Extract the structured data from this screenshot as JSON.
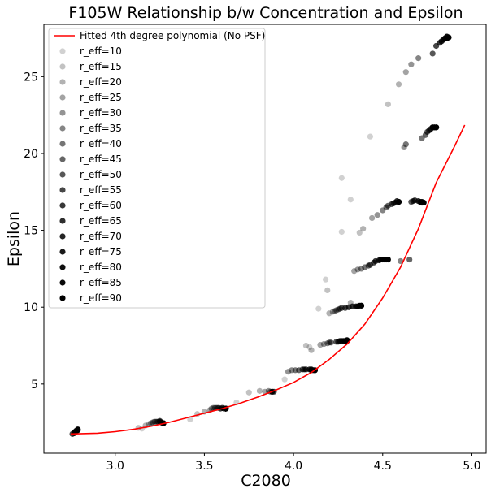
{
  "chart_data": {
    "type": "scatter",
    "title": "F105W Relationship b/w Concentration and Epsilon",
    "xlabel": "C2080",
    "ylabel": "Epsilon",
    "xlim": [
      2.6,
      5.08
    ],
    "ylim": [
      0.5,
      28.4
    ],
    "xticks": [
      3.0,
      3.5,
      4.0,
      4.5,
      5.0
    ],
    "xtick_labels": [
      "3.0",
      "3.5",
      "4.0",
      "4.5",
      "5.0"
    ],
    "yticks": [
      5,
      10,
      15,
      20,
      25
    ],
    "ytick_labels": [
      "5",
      "10",
      "15",
      "20",
      "25"
    ],
    "grid": false,
    "legend_position": "upper-left",
    "fit_line": {
      "name": "Fitted 4th degree polynomial (No PSF)",
      "color": "#ff0000",
      "x": [
        2.75,
        2.9,
        3.0,
        3.1,
        3.2,
        3.3,
        3.4,
        3.5,
        3.6,
        3.7,
        3.8,
        3.9,
        4.0,
        4.1,
        4.2,
        4.3,
        4.4,
        4.5,
        4.6,
        4.7,
        4.8,
        4.9,
        4.96
      ],
      "y": [
        1.75,
        1.8,
        1.9,
        2.05,
        2.25,
        2.5,
        2.8,
        3.1,
        3.4,
        3.75,
        4.15,
        4.6,
        5.1,
        5.75,
        6.6,
        7.6,
        8.9,
        10.6,
        12.6,
        15.1,
        18.1,
        20.4,
        21.85
      ]
    },
    "series": [
      {
        "name": "r_eff=10",
        "alpha": 0.18,
        "x": [
          3.15,
          3.42,
          3.68,
          3.95,
          4.09,
          4.14,
          4.18,
          4.27,
          4.27,
          4.32,
          4.43
        ],
        "y": [
          2.1,
          2.7,
          3.8,
          5.3,
          7.4,
          9.9,
          11.8,
          14.9,
          18.4,
          17.0,
          21.1
        ]
      },
      {
        "name": "r_eff=15",
        "alpha": 0.24,
        "x": [
          3.13,
          3.46,
          3.75,
          4.07,
          4.19,
          4.37,
          4.53
        ],
        "y": [
          2.15,
          3.05,
          4.45,
          7.5,
          11.1,
          14.85,
          23.2
        ]
      },
      {
        "name": "r_eff=20",
        "alpha": 0.3,
        "x": [
          3.17,
          3.5,
          3.81,
          4.1,
          4.2,
          4.32,
          4.39,
          4.59
        ],
        "y": [
          2.3,
          3.2,
          4.55,
          7.2,
          9.6,
          10.3,
          15.1,
          24.5
        ]
      },
      {
        "name": "r_eff=25",
        "alpha": 0.36,
        "x": [
          3.19,
          3.53,
          3.84,
          4.15,
          4.22,
          4.34,
          4.44,
          4.63
        ],
        "y": [
          2.4,
          3.3,
          4.5,
          7.55,
          9.7,
          12.35,
          15.8,
          25.3
        ]
      },
      {
        "name": "r_eff=30",
        "alpha": 0.42,
        "x": [
          3.2,
          3.54,
          3.86,
          3.97,
          4.17,
          4.23,
          4.36,
          4.47,
          4.62,
          4.66
        ],
        "y": [
          2.45,
          3.4,
          4.55,
          5.8,
          7.6,
          9.75,
          12.45,
          16.0,
          20.4,
          25.8
        ]
      },
      {
        "name": "r_eff=35",
        "alpha": 0.48,
        "x": [
          3.21,
          3.55,
          3.87,
          3.99,
          4.19,
          4.24,
          4.38,
          4.5,
          4.6,
          4.7
        ],
        "y": [
          2.5,
          3.45,
          4.5,
          5.9,
          7.65,
          9.8,
          12.5,
          16.3,
          13.0,
          26.2
        ]
      },
      {
        "name": "r_eff=40",
        "alpha": 0.54,
        "x": [
          3.22,
          3.56,
          3.88,
          4.01,
          4.2,
          4.25,
          4.4,
          4.52,
          4.63,
          4.72
        ],
        "y": [
          2.55,
          3.45,
          4.5,
          5.9,
          7.7,
          9.85,
          12.6,
          16.5,
          20.6,
          21.0
        ]
      },
      {
        "name": "r_eff=45",
        "alpha": 0.6,
        "x": [
          3.23,
          3.57,
          3.88,
          4.03,
          4.21,
          4.26,
          4.42,
          4.53,
          4.65,
          4.74
        ],
        "y": [
          2.55,
          3.45,
          4.5,
          5.9,
          7.7,
          9.9,
          12.7,
          16.6,
          13.1,
          21.2
        ]
      },
      {
        "name": "r_eff=50",
        "alpha": 0.66,
        "x": [
          3.24,
          3.58,
          3.88,
          4.05,
          4.24,
          4.27,
          4.43,
          4.55,
          4.66,
          4.75,
          4.78
        ],
        "y": [
          2.55,
          3.45,
          4.5,
          5.95,
          7.75,
          9.95,
          12.75,
          16.7,
          16.85,
          21.4,
          26.5
        ]
      },
      {
        "name": "r_eff=55",
        "alpha": 0.72,
        "x": [
          2.76,
          3.25,
          3.59,
          3.89,
          4.06,
          4.25,
          4.29,
          4.45,
          4.56,
          4.67,
          4.76,
          4.8
        ],
        "y": [
          1.75,
          2.6,
          3.4,
          4.5,
          5.95,
          7.75,
          9.95,
          12.9,
          16.75,
          16.9,
          21.5,
          27.0
        ]
      },
      {
        "name": "r_eff=60",
        "alpha": 0.78,
        "x": [
          2.77,
          3.25,
          3.6,
          4.07,
          4.26,
          4.31,
          4.46,
          4.57,
          4.68,
          4.77,
          4.82
        ],
        "y": [
          1.8,
          2.55,
          3.45,
          5.95,
          7.8,
          10.0,
          13.0,
          16.8,
          16.95,
          21.6,
          27.2
        ]
      },
      {
        "name": "r_eff=65",
        "alpha": 0.82,
        "x": [
          2.77,
          3.26,
          3.61,
          4.09,
          4.27,
          4.33,
          4.48,
          4.58,
          4.7,
          4.78,
          4.83
        ],
        "y": [
          1.85,
          2.5,
          3.4,
          5.95,
          7.8,
          10.05,
          13.05,
          16.9,
          16.9,
          21.7,
          27.3
        ]
      },
      {
        "name": "r_eff=70",
        "alpha": 0.86,
        "x": [
          2.78,
          3.26,
          3.62,
          4.1,
          4.28,
          4.35,
          4.49,
          4.59,
          4.71,
          4.78,
          4.84
        ],
        "y": [
          1.9,
          2.5,
          3.4,
          5.95,
          7.8,
          10.05,
          13.1,
          16.85,
          16.85,
          21.7,
          27.4
        ]
      },
      {
        "name": "r_eff=75",
        "alpha": 0.9,
        "x": [
          2.78,
          3.27,
          3.62,
          4.1,
          4.29,
          4.36,
          4.5,
          4.59,
          4.72,
          4.79,
          4.85
        ],
        "y": [
          1.95,
          2.45,
          3.4,
          5.9,
          7.8,
          10.05,
          13.1,
          16.85,
          16.8,
          21.7,
          27.5
        ]
      },
      {
        "name": "r_eff=80",
        "alpha": 0.94,
        "x": [
          2.79,
          3.27,
          3.62,
          4.11,
          4.29,
          4.37,
          4.51,
          4.72,
          4.79,
          4.86
        ],
        "y": [
          2.0,
          2.45,
          3.4,
          5.9,
          7.8,
          10.1,
          13.1,
          16.85,
          21.7,
          27.6
        ]
      },
      {
        "name": "r_eff=85",
        "alpha": 0.97,
        "x": [
          2.79,
          3.27,
          3.62,
          4.12,
          4.3,
          4.38,
          4.52,
          4.72,
          4.8,
          4.86
        ],
        "y": [
          2.0,
          2.45,
          3.4,
          5.9,
          7.8,
          10.1,
          13.1,
          16.8,
          21.7,
          27.5
        ]
      },
      {
        "name": "r_eff=90",
        "alpha": 1.0,
        "x": [
          2.79,
          3.27,
          3.62,
          4.12,
          4.3,
          4.38,
          4.53,
          4.73,
          4.8,
          4.87
        ],
        "y": [
          2.05,
          2.45,
          3.4,
          5.9,
          7.85,
          10.1,
          13.1,
          16.8,
          21.7,
          27.55
        ]
      }
    ]
  }
}
